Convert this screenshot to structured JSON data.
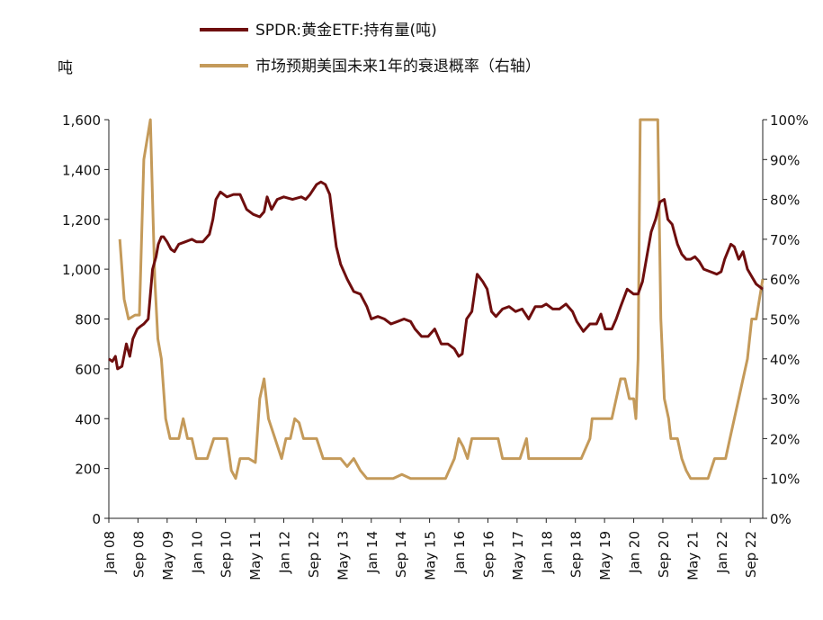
{
  "chart_data": {
    "type": "line",
    "title": "",
    "y_left_unit": "吨",
    "legend": [
      {
        "name": "SPDR:黄金ETF:持有量(吨)",
        "color": "#6e0e0e"
      },
      {
        "name": "市场预期美国未来1年的衰退概率（右轴）",
        "color": "#c49a5a"
      }
    ],
    "x_tick_labels": [
      "Jan 08",
      "Sep 08",
      "May 09",
      "Jan 10",
      "Sep 10",
      "May 11",
      "Jan 12",
      "Sep 12",
      "May 13",
      "Jan 14",
      "Sep 14",
      "May 15",
      "Jan 16",
      "Sep 16",
      "May 17",
      "Jan 18",
      "Sep 18",
      "May 19",
      "Jan 20",
      "Sep 20",
      "May 21",
      "Jan 22",
      "Sep 22"
    ],
    "y_left": {
      "min": 0,
      "max": 1600,
      "ticks": [
        "0",
        "200",
        "400",
        "600",
        "800",
        "1,000",
        "1,200",
        "1,400",
        "1,600"
      ]
    },
    "y_right": {
      "min": 0,
      "max": 100,
      "ticks": [
        "0%",
        "10%",
        "20%",
        "30%",
        "40%",
        "50%",
        "60%",
        "70%",
        "80%",
        "90%",
        "100%"
      ]
    },
    "x_range": [
      2008.0,
      2022.95
    ],
    "series": [
      {
        "name": "SPDR:黄金ETF:持有量(吨)",
        "axis": "left",
        "color": "#6e0e0e",
        "x": [
          2008.0,
          2008.08,
          2008.15,
          2008.2,
          2008.3,
          2008.4,
          2008.48,
          2008.55,
          2008.65,
          2008.72,
          2008.8,
          2008.9,
          2009.0,
          2009.08,
          2009.13,
          2009.2,
          2009.25,
          2009.33,
          2009.42,
          2009.5,
          2009.6,
          2009.75,
          2009.9,
          2010.0,
          2010.15,
          2010.3,
          2010.38,
          2010.45,
          2010.55,
          2010.7,
          2010.85,
          2011.0,
          2011.15,
          2011.3,
          2011.45,
          2011.55,
          2011.62,
          2011.72,
          2011.85,
          2012.0,
          2012.2,
          2012.4,
          2012.5,
          2012.6,
          2012.75,
          2012.85,
          2012.95,
          2013.05,
          2013.12,
          2013.2,
          2013.3,
          2013.45,
          2013.6,
          2013.75,
          2013.9,
          2014.0,
          2014.15,
          2014.3,
          2014.45,
          2014.6,
          2014.75,
          2014.9,
          2015.0,
          2015.15,
          2015.3,
          2015.45,
          2015.6,
          2015.75,
          2015.9,
          2016.0,
          2016.08,
          2016.18,
          2016.3,
          2016.42,
          2016.55,
          2016.65,
          2016.75,
          2016.85,
          2017.0,
          2017.15,
          2017.3,
          2017.45,
          2017.6,
          2017.75,
          2017.9,
          2018.0,
          2018.15,
          2018.3,
          2018.45,
          2018.6,
          2018.7,
          2018.85,
          2019.0,
          2019.15,
          2019.25,
          2019.35,
          2019.5,
          2019.6,
          2019.7,
          2019.85,
          2020.0,
          2020.1,
          2020.2,
          2020.3,
          2020.4,
          2020.5,
          2020.6,
          2020.7,
          2020.78,
          2020.88,
          2021.0,
          2021.1,
          2021.2,
          2021.3,
          2021.4,
          2021.5,
          2021.6,
          2021.75,
          2021.9,
          2022.0,
          2022.08,
          2022.15,
          2022.22,
          2022.3,
          2022.4,
          2022.5,
          2022.6,
          2022.7,
          2022.8,
          2022.95
        ],
        "values": [
          640,
          630,
          650,
          600,
          610,
          700,
          650,
          720,
          760,
          770,
          780,
          800,
          1000,
          1050,
          1100,
          1130,
          1130,
          1110,
          1080,
          1070,
          1100,
          1110,
          1120,
          1110,
          1110,
          1140,
          1200,
          1280,
          1310,
          1290,
          1300,
          1300,
          1240,
          1220,
          1210,
          1230,
          1290,
          1240,
          1280,
          1290,
          1280,
          1290,
          1280,
          1300,
          1340,
          1350,
          1340,
          1300,
          1200,
          1090,
          1020,
          960,
          910,
          900,
          850,
          800,
          810,
          800,
          780,
          790,
          800,
          790,
          760,
          730,
          730,
          760,
          700,
          700,
          680,
          650,
          660,
          800,
          830,
          980,
          950,
          920,
          830,
          810,
          840,
          850,
          830,
          840,
          800,
          850,
          850,
          860,
          840,
          840,
          860,
          830,
          790,
          750,
          780,
          780,
          820,
          760,
          760,
          800,
          850,
          920,
          900,
          900,
          950,
          1050,
          1150,
          1200,
          1270,
          1280,
          1200,
          1180,
          1100,
          1060,
          1040,
          1040,
          1050,
          1030,
          1000,
          990,
          980,
          990,
          1040,
          1070,
          1100,
          1090,
          1040,
          1070,
          1000,
          970,
          940,
          920
        ]
      },
      {
        "name": "市场预期美国未来1年的衰退概率（右轴）",
        "axis": "right",
        "color": "#c49a5a",
        "x": [
          2008.25,
          2008.35,
          2008.45,
          2008.6,
          2008.7,
          2008.8,
          2008.95,
          2009.0,
          2009.05,
          2009.12,
          2009.2,
          2009.3,
          2009.4,
          2009.5,
          2009.6,
          2009.7,
          2009.8,
          2009.9,
          2010.0,
          2010.1,
          2010.25,
          2010.4,
          2010.55,
          2010.7,
          2010.8,
          2010.9,
          2011.0,
          2011.2,
          2011.35,
          2011.45,
          2011.55,
          2011.65,
          2011.8,
          2011.95,
          2012.05,
          2012.15,
          2012.25,
          2012.35,
          2012.45,
          2012.5,
          2012.6,
          2012.75,
          2012.9,
          2013.05,
          2013.2,
          2013.3,
          2013.45,
          2013.6,
          2013.75,
          2013.9,
          2014.0,
          2014.15,
          2014.3,
          2014.5,
          2014.7,
          2014.9,
          2015.1,
          2015.3,
          2015.5,
          2015.7,
          2015.9,
          2016.0,
          2016.1,
          2016.2,
          2016.3,
          2016.4,
          2016.5,
          2016.7,
          2016.9,
          2017.0,
          2017.2,
          2017.4,
          2017.55,
          2017.6,
          2017.65,
          2017.7,
          2017.85,
          2018.0,
          2018.2,
          2018.4,
          2018.6,
          2018.8,
          2019.0,
          2019.05,
          2019.1,
          2019.3,
          2019.5,
          2019.6,
          2019.7,
          2019.8,
          2019.9,
          2020.0,
          2020.05,
          2020.1,
          2020.15,
          2020.2,
          2020.22,
          2020.3,
          2020.35,
          2020.45,
          2020.55,
          2020.62,
          2020.7,
          2020.8,
          2020.85,
          2020.9,
          2021.0,
          2021.1,
          2021.2,
          2021.3,
          2021.4,
          2021.5,
          2021.7,
          2021.85,
          2022.0,
          2022.1,
          2022.2,
          2022.3,
          2022.4,
          2022.5,
          2022.6,
          2022.7,
          2022.8,
          2022.95
        ],
        "values": [
          70,
          55,
          50,
          51,
          51,
          90,
          100,
          80,
          60,
          45,
          40,
          25,
          20,
          20,
          20,
          25,
          20,
          20,
          15,
          15,
          15,
          20,
          20,
          20,
          12,
          10,
          15,
          15,
          14,
          30,
          35,
          25,
          20,
          15,
          20,
          20,
          25,
          24,
          20,
          20,
          20,
          20,
          15,
          15,
          15,
          15,
          13,
          15,
          12,
          10,
          10,
          10,
          10,
          10,
          11,
          10,
          10,
          10,
          10,
          10,
          15,
          20,
          18,
          15,
          20,
          20,
          20,
          20,
          20,
          15,
          15,
          15,
          20,
          15,
          15,
          15,
          15,
          15,
          15,
          15,
          15,
          15,
          20,
          25,
          25,
          25,
          25,
          30,
          35,
          35,
          30,
          30,
          25,
          40,
          100,
          100,
          100,
          100,
          100,
          100,
          100,
          50,
          30,
          25,
          20,
          20,
          20,
          15,
          12,
          10,
          10,
          10,
          10,
          15,
          15,
          15,
          20,
          25,
          30,
          35,
          40,
          50,
          50,
          60
        ]
      }
    ]
  }
}
